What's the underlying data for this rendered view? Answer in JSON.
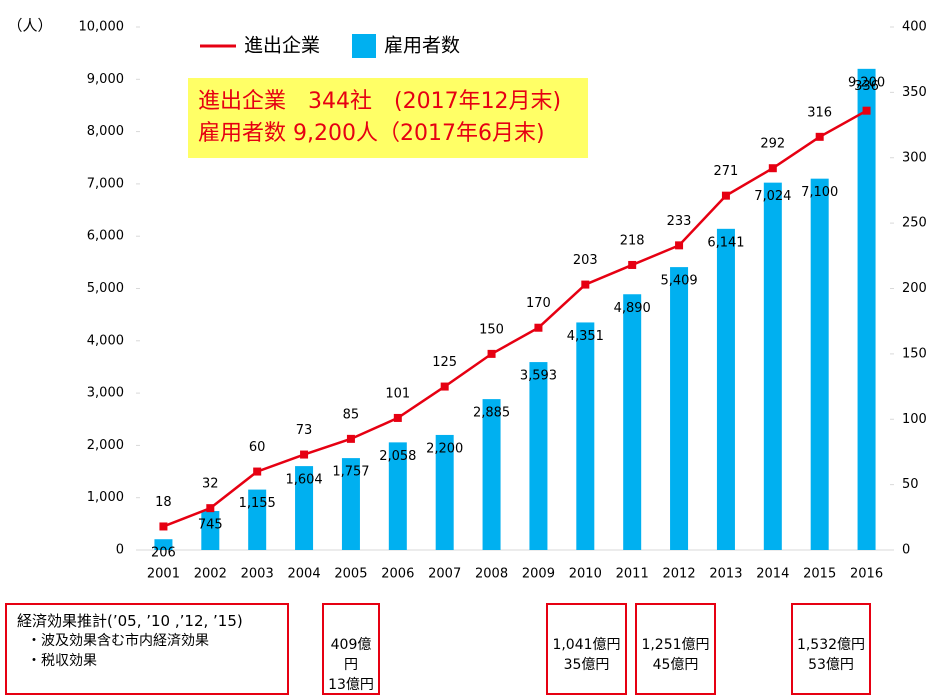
{
  "chart_data": {
    "type": "bar",
    "y_label": "（人）",
    "annotation": [
      "進出企業　344社　(2017年12月末)",
      "雇用者数 9,200人（2017年6月末)"
    ],
    "categories": [
      "2001",
      "2002",
      "2003",
      "2004",
      "2005",
      "2006",
      "2007",
      "2008",
      "2009",
      "2010",
      "2011",
      "2012",
      "2013",
      "2014",
      "2015",
      "2016"
    ],
    "series": [
      {
        "name": "進出企業",
        "type": "line",
        "axis": "y2",
        "color": "#e60012",
        "values": [
          18,
          32,
          60,
          73,
          85,
          101,
          125,
          150,
          170,
          203,
          218,
          233,
          271,
          292,
          316,
          336
        ]
      },
      {
        "name": "雇用者数",
        "type": "bar",
        "color": "#00b0f0",
        "values": [
          206,
          745,
          1155,
          1604,
          1757,
          2058,
          2200,
          2885,
          3593,
          4351,
          4890,
          5409,
          6141,
          7024,
          7100,
          9200
        ],
        "value_labels": [
          "206",
          "745",
          "1,155",
          "1,604",
          "1,757",
          "2,058",
          "2,200",
          "2,885",
          "3,593",
          "4,351",
          "4,890",
          "5,409",
          "6,141",
          "7,024",
          "7,100",
          "9,200"
        ]
      }
    ],
    "ylim": [
      0,
      10000
    ],
    "yticks": [
      0,
      {
        "value": 1000,
        "label": "1,000"
      },
      {
        "value": 2000,
        "label": "2,000"
      },
      {
        "value": 3000,
        "label": "3,000"
      },
      {
        "value": 4000,
        "label": "4,000"
      },
      {
        "value": 5000,
        "label": "5,000"
      },
      {
        "value": 6000,
        "label": "6,000"
      },
      {
        "value": 7000,
        "label": "7,000"
      },
      {
        "value": 8000,
        "label": "8,000"
      },
      {
        "value": 9000,
        "label": "9,000"
      },
      {
        "value": 10000,
        "label": "10,000"
      }
    ],
    "y2lim": [
      0,
      400
    ],
    "y2ticks": [
      0,
      50,
      100,
      150,
      200,
      250,
      300,
      350,
      400
    ],
    "grid": false
  },
  "notes": {
    "title": "経済効果推計(’05, ’10 ,’12, ’15)",
    "items": [
      "・波及効果含む市内経済効果",
      "・税収効果"
    ],
    "boxes": [
      [
        "409億円",
        "13億円"
      ],
      [
        "1,041億円",
        "35億円"
      ],
      [
        "1,251億円",
        "45億円"
      ],
      [
        "1,532億円",
        "53億円"
      ]
    ]
  }
}
